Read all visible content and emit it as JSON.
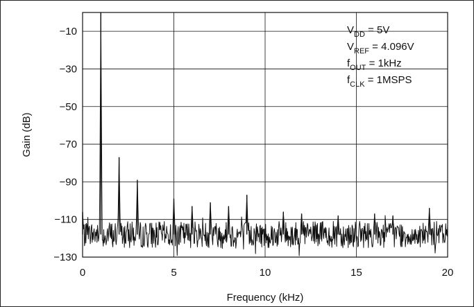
{
  "chart_data": {
    "type": "line",
    "xlabel": "Frequency (kHz)",
    "ylabel": "Gain (dB)",
    "xlim": [
      0,
      20
    ],
    "ylim": [
      -130,
      0
    ],
    "xticks": [
      0,
      5,
      10,
      15,
      20
    ],
    "yticks": [
      -10,
      -30,
      -50,
      -70,
      -90,
      -110,
      -130
    ],
    "grid": true,
    "legend": "none",
    "annotations": [
      {
        "base": "V",
        "sub": "DD",
        "rest": " = 5V"
      },
      {
        "base": "V",
        "sub": "REF",
        "rest": " = 4.096V"
      },
      {
        "base": "f",
        "sub": "OUT",
        "rest": " = 1kHz"
      },
      {
        "base": "f",
        "sub": "CLK",
        "rest": " = 1MSPS"
      }
    ],
    "series": [
      {
        "noise_floor_db": -118,
        "peaks": [
          {
            "x": 0.0,
            "y": -106
          },
          {
            "x": 1.0,
            "y": 0
          },
          {
            "x": 2.0,
            "y": -77
          },
          {
            "x": 3.0,
            "y": -89
          },
          {
            "x": 5.0,
            "y": -99
          },
          {
            "x": 6.0,
            "y": -103
          },
          {
            "x": 7.0,
            "y": -101
          },
          {
            "x": 8.0,
            "y": -103
          },
          {
            "x": 9.0,
            "y": -97
          },
          {
            "x": 11.0,
            "y": -106
          },
          {
            "x": 12.0,
            "y": -107
          },
          {
            "x": 14.0,
            "y": -108
          },
          {
            "x": 16.0,
            "y": -107
          },
          {
            "x": 17.0,
            "y": -108
          },
          {
            "x": 19.0,
            "y": -104
          }
        ]
      }
    ]
  }
}
